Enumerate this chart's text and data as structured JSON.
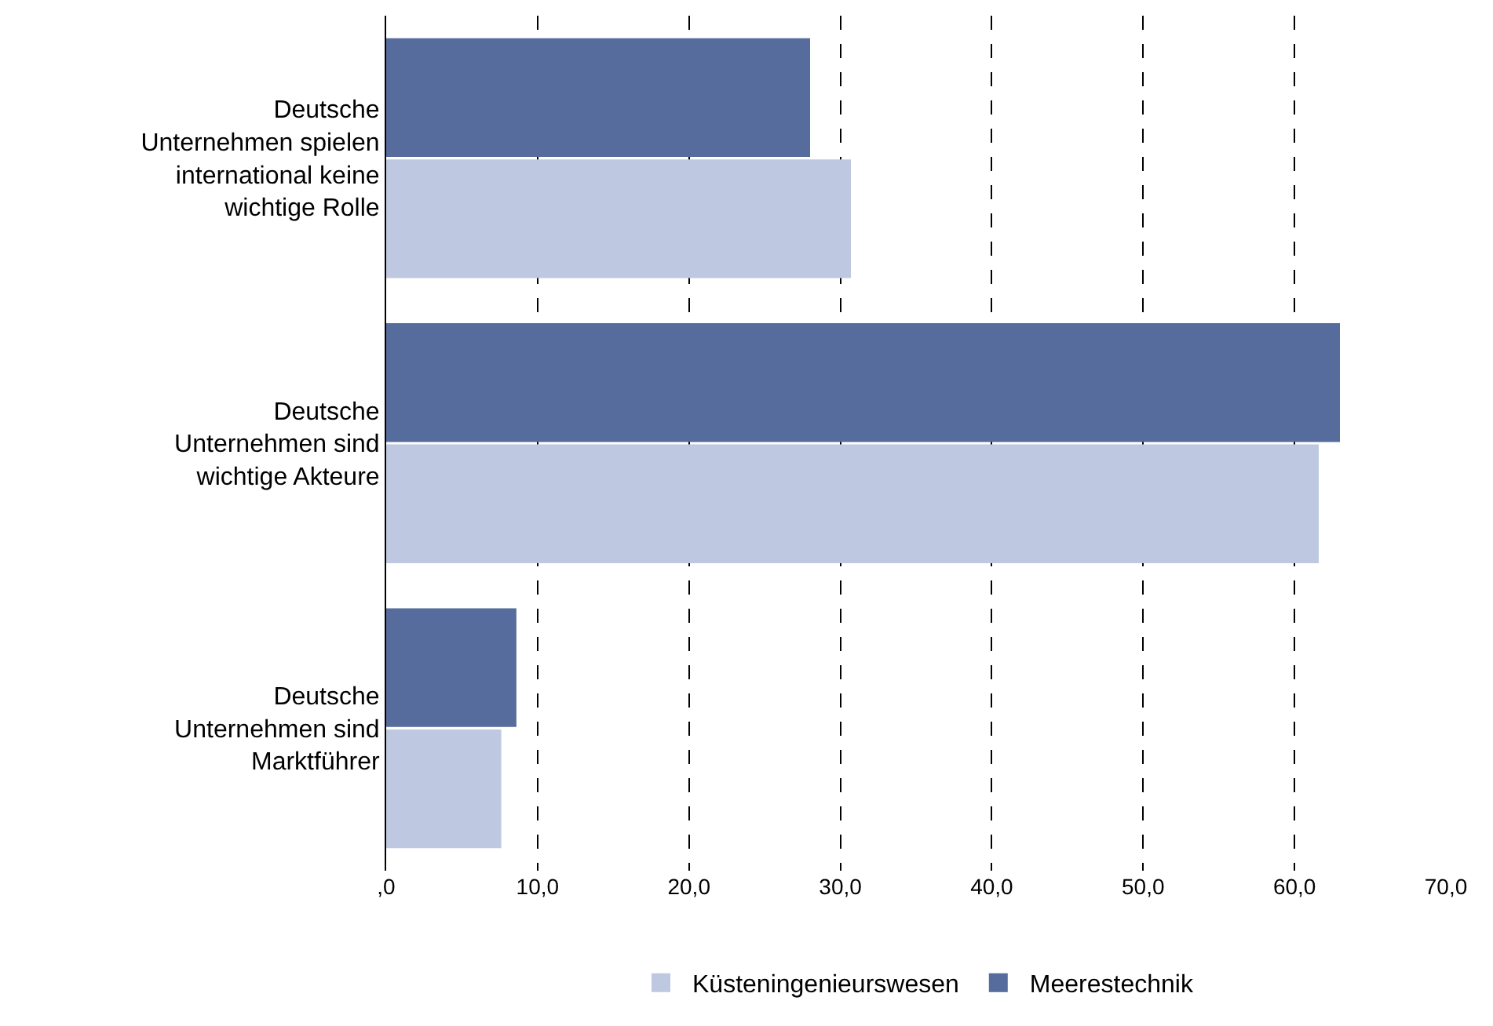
{
  "chart_data": {
    "type": "bar",
    "orientation": "horizontal",
    "categories": [
      "Deutsche\nUnternehmen spielen\ninternational keine\nwichtige Rolle",
      "Deutsche\nUnternehmen sind\nwichtige Akteure",
      "Deutsche\nUnternehmen sind\nMarktführer"
    ],
    "series": [
      {
        "name": "Meerestechnik",
        "color": "#566c9c",
        "values": [
          28.0,
          63.0,
          8.6
        ]
      },
      {
        "name": "Küsteningenieurswesen",
        "color": "#bec8e0",
        "values": [
          30.7,
          61.6,
          7.6
        ]
      }
    ],
    "xlim": [
      0,
      70
    ],
    "xticks": [
      {
        "value": 0,
        "label": ",0"
      },
      {
        "value": 10,
        "label": "10,0"
      },
      {
        "value": 20,
        "label": "20,0"
      },
      {
        "value": 30,
        "label": "30,0"
      },
      {
        "value": 40,
        "label": "40,0"
      },
      {
        "value": 50,
        "label": "50,0"
      },
      {
        "value": 60,
        "label": "60,0"
      },
      {
        "value": 70,
        "label": "70,0"
      }
    ],
    "grid": "x",
    "legend": "bottom"
  }
}
